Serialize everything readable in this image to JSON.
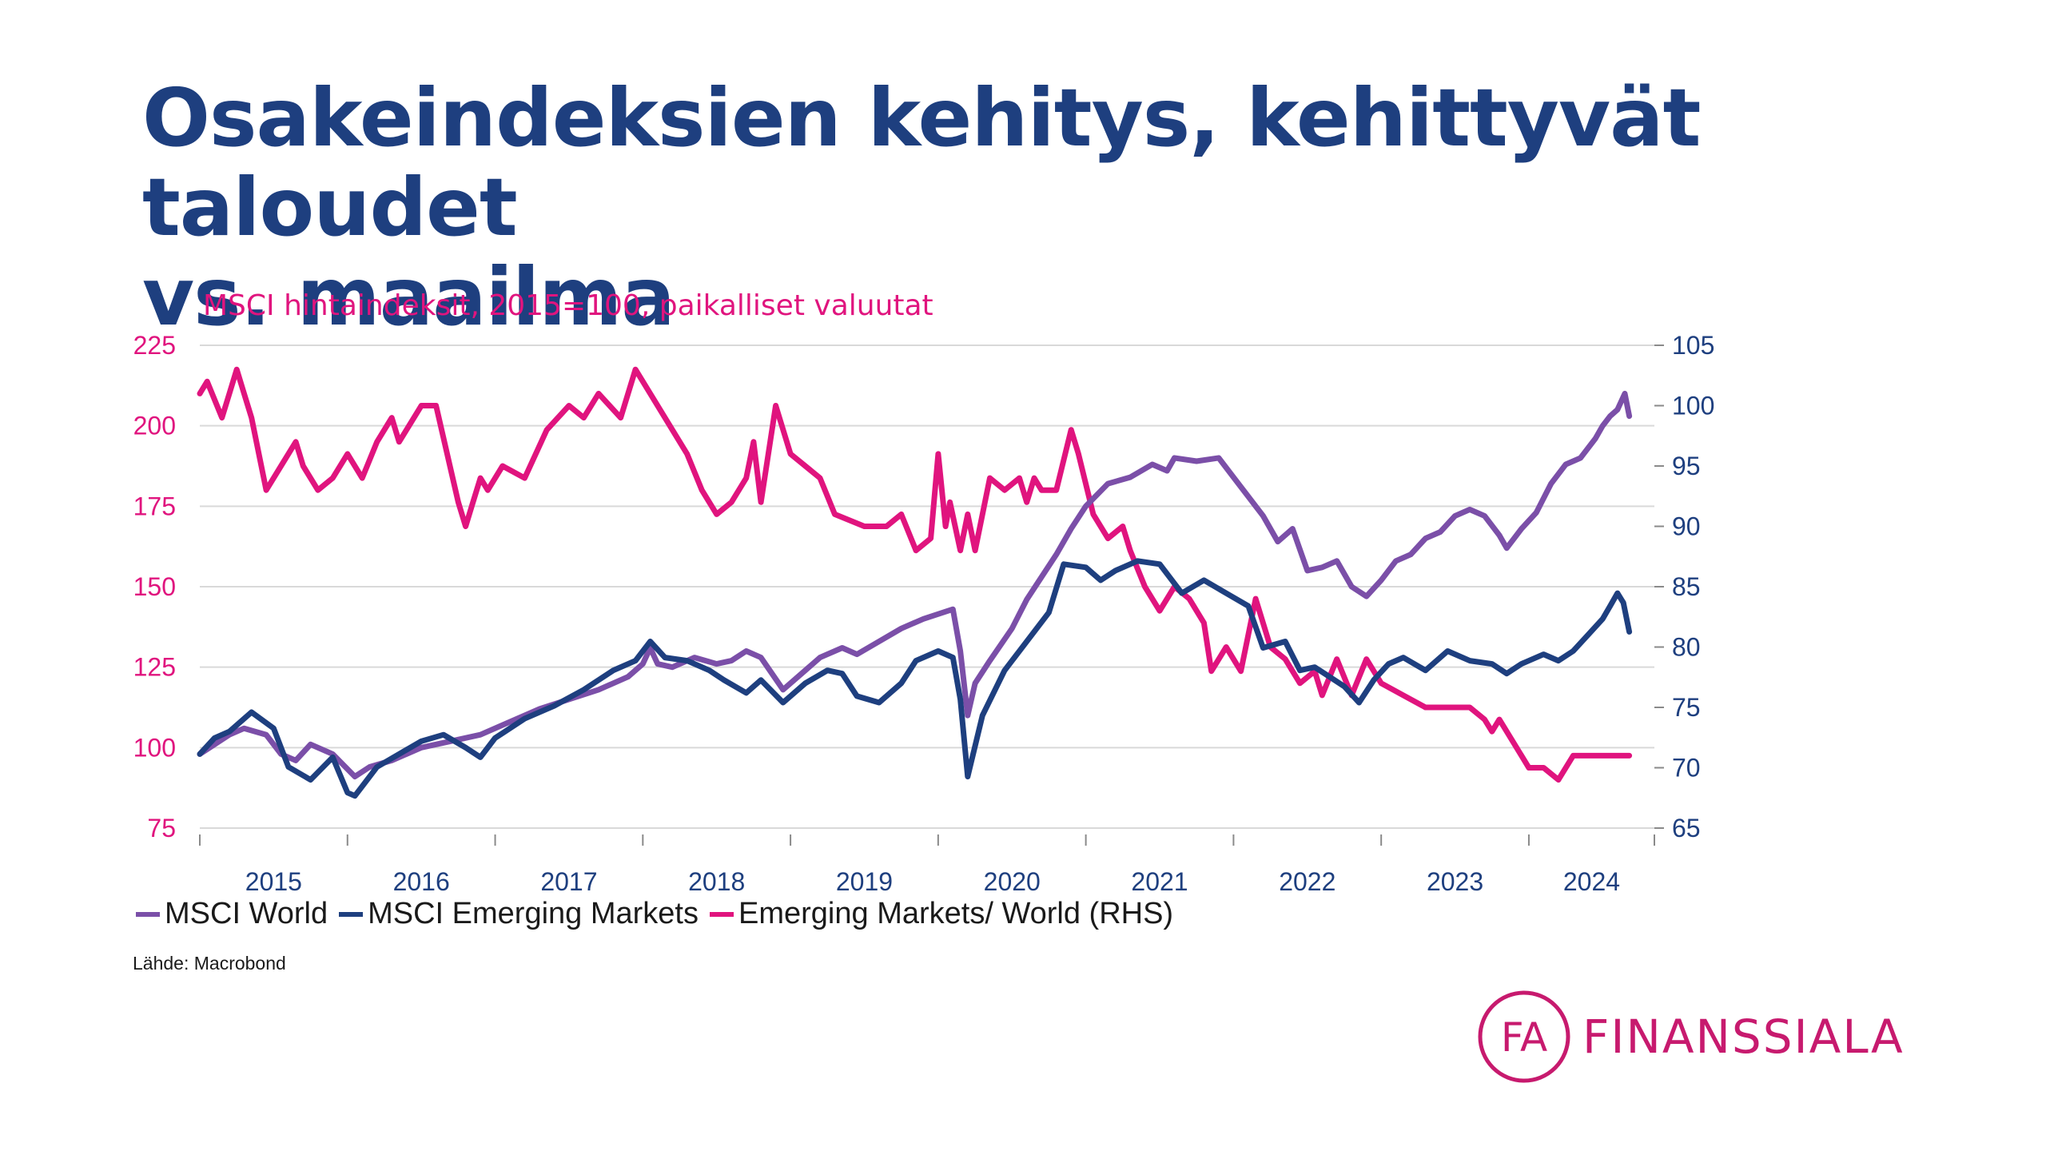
{
  "title": {
    "line1": "Osakeindeksien kehitys, kehittyvät taloudet",
    "line2": "vs. maailma"
  },
  "chart_heading": "MSCI hintaindeksit, 2015=100, paikalliset valuutat",
  "source": "Lähde: Macrobond",
  "logo": {
    "mark": "FA",
    "text": "FINANSSIALA",
    "color": "#c71a6e"
  },
  "colors": {
    "world": "#7b4fa8",
    "em": "#1e3f7f",
    "ratio": "#e0147e",
    "left_axis": "#e0147e",
    "right_axis": "#1e3f7f",
    "grid": "#d9d9d9"
  },
  "chart_data": {
    "type": "line",
    "title": "MSCI hintaindeksit, 2015=100, paikalliset valuutat",
    "xlim": [
      2015.0,
      2024.85
    ],
    "x_ticks": [
      2015,
      2016,
      2017,
      2018,
      2019,
      2020,
      2021,
      2022,
      2023,
      2024
    ],
    "x_tick_labels": [
      "2015",
      "2016",
      "2017",
      "2018",
      "2019",
      "2020",
      "2021",
      "2022",
      "2023",
      "2024"
    ],
    "y_left": {
      "lim": [
        75,
        225
      ],
      "ticks": [
        75,
        100,
        125,
        150,
        175,
        200,
        225
      ],
      "tick_labels": [
        "75",
        "100",
        "125",
        "150",
        "175",
        "200",
        "225"
      ]
    },
    "y_right": {
      "lim": [
        65,
        105
      ],
      "ticks": [
        65,
        70,
        75,
        80,
        85,
        90,
        95,
        100,
        105
      ],
      "tick_labels": [
        "65",
        "70",
        "75",
        "80",
        "85",
        "90",
        "95",
        "100",
        "105"
      ]
    },
    "grid": true,
    "legend_position": "bottom",
    "series": [
      {
        "name": "MSCI World",
        "axis": "left",
        "color": "#7b4fa8",
        "x": [
          2015.0,
          2015.1,
          2015.2,
          2015.3,
          2015.45,
          2015.55,
          2015.65,
          2015.75,
          2015.9,
          2016.05,
          2016.15,
          2016.3,
          2016.5,
          2016.7,
          2016.9,
          2017.1,
          2017.3,
          2017.5,
          2017.7,
          2017.9,
          2018.0,
          2018.05,
          2018.1,
          2018.2,
          2018.35,
          2018.5,
          2018.6,
          2018.7,
          2018.8,
          2018.95,
          2019.1,
          2019.2,
          2019.35,
          2019.45,
          2019.6,
          2019.75,
          2019.9,
          2020.1,
          2020.15,
          2020.2,
          2020.25,
          2020.35,
          2020.5,
          2020.6,
          2020.8,
          2020.9,
          2021.0,
          2021.15,
          2021.3,
          2021.45,
          2021.55,
          2021.6,
          2021.75,
          2021.9,
          2022.0,
          2022.1,
          2022.2,
          2022.3,
          2022.4,
          2022.5,
          2022.6,
          2022.7,
          2022.8,
          2022.9,
          2023.0,
          2023.1,
          2023.2,
          2023.3,
          2023.4,
          2023.5,
          2023.6,
          2023.7,
          2023.8,
          2023.85,
          2023.95,
          2024.05,
          2024.15,
          2024.25,
          2024.35,
          2024.45,
          2024.5,
          2024.55,
          2024.6,
          2024.65,
          2024.68
        ],
        "values": [
          98,
          101,
          104,
          106,
          104,
          98,
          96,
          101,
          98,
          91,
          94,
          96,
          100,
          102,
          104,
          108,
          112,
          115,
          118,
          122,
          126,
          131,
          126,
          125,
          128,
          126,
          127,
          130,
          128,
          118,
          124,
          128,
          131,
          129,
          133,
          137,
          140,
          143,
          130,
          110,
          120,
          127,
          137,
          146,
          160,
          168,
          175,
          182,
          184,
          188,
          186,
          190,
          189,
          190,
          184,
          178,
          172,
          164,
          168,
          155,
          156,
          158,
          150,
          147,
          152,
          158,
          160,
          165,
          167,
          172,
          174,
          172,
          166,
          162,
          168,
          173,
          182,
          188,
          190,
          196,
          200,
          203,
          205,
          210,
          203
        ]
      },
      {
        "name": "MSCI Emerging Markets",
        "axis": "left",
        "color": "#1e3f7f",
        "x": [
          2015.0,
          2015.1,
          2015.2,
          2015.35,
          2015.5,
          2015.6,
          2015.75,
          2015.9,
          2016.0,
          2016.05,
          2016.1,
          2016.2,
          2016.35,
          2016.5,
          2016.65,
          2016.8,
          2016.9,
          2017.0,
          2017.2,
          2017.4,
          2017.6,
          2017.8,
          2017.95,
          2018.05,
          2018.15,
          2018.3,
          2018.45,
          2018.55,
          2018.7,
          2018.8,
          2018.95,
          2019.1,
          2019.25,
          2019.35,
          2019.45,
          2019.6,
          2019.75,
          2019.85,
          2020.0,
          2020.1,
          2020.15,
          2020.2,
          2020.3,
          2020.45,
          2020.6,
          2020.75,
          2020.85,
          2021.0,
          2021.1,
          2021.2,
          2021.35,
          2021.5,
          2021.65,
          2021.8,
          2021.95,
          2022.1,
          2022.2,
          2022.35,
          2022.45,
          2022.55,
          2022.65,
          2022.75,
          2022.85,
          2022.95,
          2023.05,
          2023.15,
          2023.3,
          2023.45,
          2023.6,
          2023.75,
          2023.85,
          2023.95,
          2024.1,
          2024.2,
          2024.3,
          2024.4,
          2024.5,
          2024.55,
          2024.6,
          2024.64,
          2024.68
        ],
        "values": [
          98,
          103,
          105,
          111,
          106,
          94,
          90,
          97,
          86,
          85,
          88,
          94,
          98,
          102,
          104,
          100,
          97,
          103,
          109,
          113,
          118,
          124,
          127,
          133,
          128,
          127,
          124,
          121,
          117,
          121,
          114,
          120,
          124,
          123,
          116,
          114,
          120,
          127,
          130,
          128,
          115,
          91,
          110,
          124,
          133,
          142,
          157,
          156,
          152,
          155,
          158,
          157,
          148,
          152,
          148,
          144,
          131,
          133,
          124,
          125,
          122,
          119,
          114,
          121,
          126,
          128,
          124,
          130,
          127,
          126,
          123,
          126,
          129,
          127,
          130,
          135,
          140,
          144,
          148,
          145,
          136
        ]
      },
      {
        "name": "Emerging Markets/ World (RHS)",
        "axis": "right",
        "color": "#e0147e",
        "x": [
          2015.0,
          2015.05,
          2015.15,
          2015.2,
          2015.25,
          2015.3,
          2015.35,
          2015.45,
          2015.55,
          2015.65,
          2015.7,
          2015.8,
          2015.9,
          2016.0,
          2016.1,
          2016.2,
          2016.3,
          2016.35,
          2016.5,
          2016.6,
          2016.75,
          2016.8,
          2016.85,
          2016.9,
          2016.95,
          2017.05,
          2017.2,
          2017.35,
          2017.5,
          2017.6,
          2017.7,
          2017.85,
          2017.95,
          2018.05,
          2018.15,
          2018.3,
          2018.4,
          2018.5,
          2018.6,
          2018.7,
          2018.75,
          2018.8,
          2018.9,
          2019.0,
          2019.1,
          2019.2,
          2019.3,
          2019.5,
          2019.65,
          2019.75,
          2019.85,
          2019.95,
          2020.0,
          2020.05,
          2020.08,
          2020.15,
          2020.2,
          2020.25,
          2020.35,
          2020.45,
          2020.55,
          2020.6,
          2020.65,
          2020.7,
          2020.8,
          2020.9,
          2020.95,
          2021.05,
          2021.15,
          2021.25,
          2021.3,
          2021.4,
          2021.5,
          2021.6,
          2021.7,
          2021.8,
          2021.85,
          2021.95,
          2022.05,
          2022.15,
          2022.25,
          2022.35,
          2022.45,
          2022.55,
          2022.6,
          2022.7,
          2022.8,
          2022.9,
          2023.0,
          2023.15,
          2023.3,
          2023.45,
          2023.6,
          2023.7,
          2023.75,
          2023.8,
          2023.9,
          2024.0,
          2024.1,
          2024.2,
          2024.3,
          2024.4,
          2024.5,
          2024.6,
          2024.68
        ],
        "values": [
          101,
          102,
          99,
          101,
          103,
          101,
          99,
          93,
          95,
          97,
          95,
          93,
          94,
          96,
          94,
          97,
          99,
          97,
          100,
          100,
          92,
          90,
          92,
          94,
          93,
          95,
          94,
          98,
          100,
          99,
          101,
          99,
          103,
          101,
          99,
          96,
          93,
          91,
          92,
          94,
          97,
          92,
          100,
          96,
          95,
          94,
          91,
          90,
          90,
          91,
          88,
          89,
          96,
          90,
          92,
          88,
          91,
          88,
          94,
          93,
          94,
          92,
          94,
          93,
          93,
          98,
          96,
          91,
          89,
          90,
          88,
          85,
          83,
          85,
          84,
          82,
          78,
          80,
          78,
          84,
          80,
          79,
          77,
          78,
          76,
          79,
          76,
          79,
          77,
          76,
          75,
          75,
          75,
          74,
          73,
          74,
          72,
          70,
          70,
          69,
          71,
          71,
          71,
          71,
          71
        ]
      }
    ]
  }
}
